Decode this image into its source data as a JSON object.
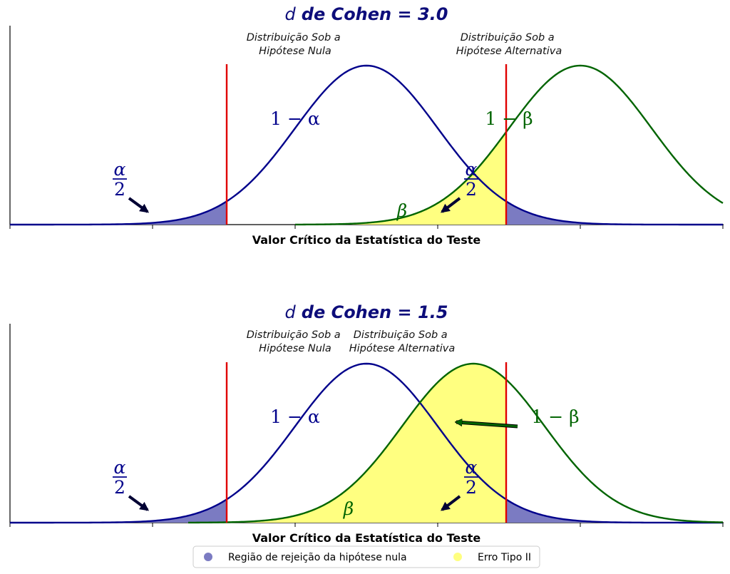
{
  "colors": {
    "null_curve": "#00008b",
    "alt_curve": "#006400",
    "critical_line": "#e00000",
    "rejection_fill": "#7b7bc2",
    "type2_fill": "#ffff80",
    "title": "#0d0d7a"
  },
  "chart_data": [
    {
      "type": "area",
      "title_prefix": "d",
      "title_main": "de Cohen = 3.0",
      "cohen_d": 3.0,
      "xlabel": "Valor Crítico da Estatística do Teste",
      "xlim": [
        -5,
        5
      ],
      "null_mean": 0,
      "alt_mean": 3.0,
      "critical_values": [
        -1.96,
        1.96
      ],
      "null_label": [
        "Distribuição Sob a",
        "Hipótese Nula"
      ],
      "alt_label": [
        "Distribuição Sob a",
        "Hipótese Alternativa"
      ],
      "annotations": {
        "one_minus_alpha": "1 − α",
        "one_minus_beta": "1 − β",
        "beta": "β",
        "alpha": "α",
        "two": "2"
      }
    },
    {
      "type": "area",
      "title_prefix": "d",
      "title_main": "de Cohen = 1.5",
      "cohen_d": 1.5,
      "xlabel": "Valor Crítico da Estatística do Teste",
      "xlim": [
        -5,
        5
      ],
      "null_mean": 0,
      "alt_mean": 1.5,
      "critical_values": [
        -1.96,
        1.96
      ],
      "null_label": [
        "Distribuição Sob a",
        "Hipótese Nula"
      ],
      "alt_label": [
        "Distribuição Sob a",
        "Hipótese Alternativa"
      ],
      "annotations": {
        "one_minus_alpha": "1 − α",
        "one_minus_beta": "1 − β",
        "beta": "β",
        "alpha": "α",
        "two": "2"
      }
    }
  ],
  "legend": {
    "items": [
      {
        "label": "Região de rejeição da hipótese nula",
        "color": "#7b7bc2"
      },
      {
        "label": "Erro Tipo II",
        "color": "#ffff80"
      }
    ]
  }
}
